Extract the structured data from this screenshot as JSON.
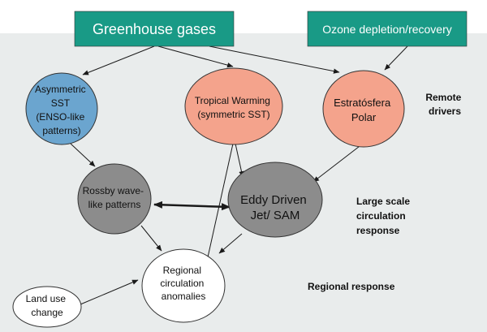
{
  "colors": {
    "panel": "#e9ecec",
    "teal": "#199a86",
    "blue": "#6ba5cf",
    "salmon": "#f4a38c",
    "gray": "#8c8c8c",
    "white": "#ffffff",
    "line": "#1a1a1a"
  },
  "top_boxes": {
    "greenhouse": "Greenhouse gases",
    "ozone": "Ozone depletion/recovery"
  },
  "nodes": {
    "asymmetric_sst": [
      "Asymmetric",
      "SST",
      "(ENSO-like",
      "patterns)"
    ],
    "tropical_warming": [
      "Tropical Warming",
      "(symmetric SST)"
    ],
    "estratosfera": [
      "Estratósfera",
      "Polar"
    ],
    "rossby": [
      "Rossby wave-",
      "like patterns"
    ],
    "eddy_jet": [
      "Eddy Driven",
      "Jet/ SAM"
    ],
    "regional": [
      "Regional",
      "circulation",
      "anomalies"
    ],
    "land_use": [
      "Land use",
      "change"
    ]
  },
  "side_labels": {
    "remote": [
      "Remote",
      "drivers"
    ],
    "large_scale": [
      "Large scale",
      "circulation",
      "response"
    ],
    "regional_response": "Regional response"
  }
}
